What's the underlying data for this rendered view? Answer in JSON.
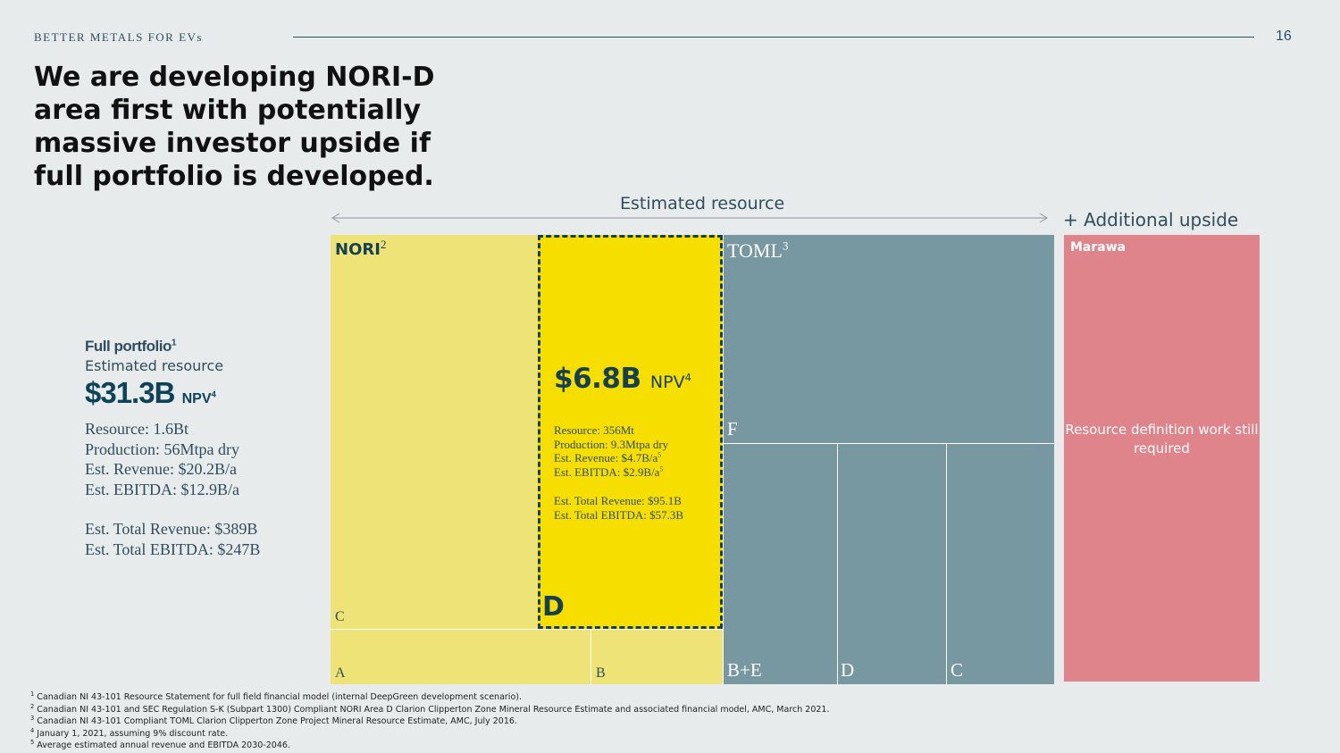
{
  "header": {
    "tag": "BETTER METALS FOR EVs",
    "page_number": "16"
  },
  "title": "We are developing NORI-D area first with potentially massive investor upside if full portfolio is developed.",
  "full_portfolio": {
    "heading": "Full portfolio",
    "heading_note": "1",
    "subheading": "Estimated resource",
    "npv_value": "$31.3B",
    "npv_label": "NPV",
    "npv_note": "4",
    "lines": [
      "Resource: 1.6Bt",
      "Production: 56Mtpa dry",
      "Est. Revenue: $20.2B/a",
      "Est. EBITDA: $12.9B/a"
    ],
    "totals": [
      "Est. Total Revenue: $389B",
      "Est. Total EBITDA: $247B"
    ]
  },
  "diagram": {
    "estimated_resource_label": "Estimated resource",
    "additional_upside_label": "+ Additional upside",
    "nori": {
      "name": "NORI",
      "note": "2",
      "areas": {
        "c": "C",
        "a": "A",
        "b": "B",
        "d": "D"
      }
    },
    "nori_d": {
      "npv_value": "$6.8B",
      "npv_label": "NPV",
      "npv_note": "4",
      "resource": "Resource: 356Mt",
      "production": "Production: 9.3Mtpa dry",
      "revenue": "Est. Revenue: $4.7B/a",
      "revenue_note": "5",
      "ebitda": "Est. EBITDA: $2.9B/a",
      "ebitda_note": "5",
      "total_revenue": "Est. Total Revenue: $95.1B",
      "total_ebitda": "Est. Total EBITDA: $57.3B"
    },
    "toml": {
      "name": "TOML",
      "note": "3",
      "areas": {
        "f": "F",
        "be": "B+E",
        "d": "D",
        "c": "C"
      }
    },
    "marawa": {
      "name": "Marawa",
      "note": "Resource definition work still required"
    }
  },
  "footnotes": [
    {
      "num": "1",
      "text": "Canadian NI 43-101 Resource Statement for full field financial model (internal DeepGreen development scenario)."
    },
    {
      "num": "2",
      "text": "Canadian NI 43-101 and SEC Regulation S-K (Subpart 1300) Compliant NORI Area D Clarion Clipperton Zone Mineral Resource Estimate and associated financial model, AMC, March 2021."
    },
    {
      "num": "3",
      "text": "Canadian NI 43-101 Compliant TOML Clarion Clipperton Zone Project Mineral Resource Estimate, AMC, July 2016."
    },
    {
      "num": "4",
      "text": "January 1, 2021, assuming 9% discount rate."
    },
    {
      "num": "5",
      "text": "Average estimated annual revenue and EBITDA 2030-2046."
    }
  ],
  "colors": {
    "background": "#e7ebec",
    "nori": "#ede376",
    "nori_d": "#f6df00",
    "toml": "#7797a1",
    "marawa": "#e0848b",
    "dark_teal": "#153f52"
  }
}
